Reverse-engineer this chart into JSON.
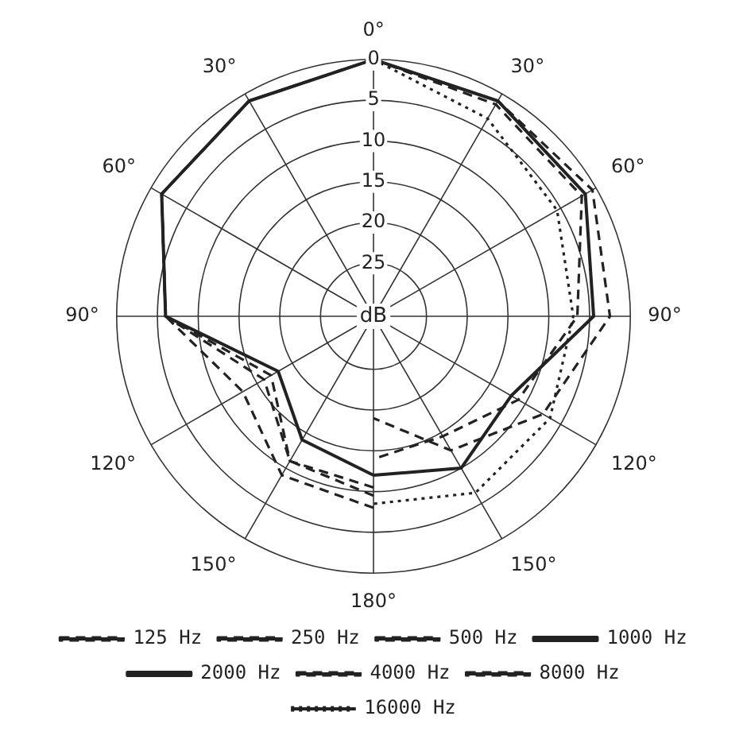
{
  "chart_data": {
    "type": "radar",
    "categories": [
      "0°",
      "30°",
      "60°",
      "90°",
      "120°",
      "150°",
      "180°",
      "150°",
      "120°",
      "90°",
      "60°",
      "30°"
    ],
    "ylim": [
      -31.5,
      0
    ],
    "yticks": [
      {
        "value": -25,
        "label": "25"
      },
      {
        "value": -20,
        "label": "20"
      },
      {
        "value": -15,
        "label": "15"
      },
      {
        "value": -10,
        "label": "10"
      },
      {
        "value": -5,
        "label": "5"
      },
      {
        "value": 0,
        "label": "0"
      }
    ],
    "annotations": [
      "dB"
    ],
    "legend": "bottom",
    "marker": "none",
    "grid": true,
    "series": [
      {
        "name": "125 Hz",
        "color": "#222222",
        "line_style": "dashed",
        "values": [
          0,
          null,
          null,
          null,
          null,
          null,
          -8,
          -9,
          -13,
          -6,
          -1.5,
          -1
        ]
      },
      {
        "name": "250 Hz",
        "color": "#222222",
        "line_style": "dashed",
        "values": [
          0,
          null,
          null,
          null,
          null,
          null,
          -9.5,
          -11,
          -16,
          -6,
          -1.5,
          -1
        ]
      },
      {
        "name": "500 Hz",
        "color": "#222222",
        "line_style": "dashed",
        "values": [
          0,
          null,
          null,
          null,
          null,
          null,
          -10.5,
          -11,
          -17,
          -6,
          -1.5,
          -1
        ]
      },
      {
        "name": "1000 Hz",
        "color": "#222222",
        "line_style": "solid",
        "values": [
          0,
          null,
          null,
          null,
          null,
          null,
          -12,
          -14,
          -18,
          -6,
          -1.5,
          -1
        ]
      },
      {
        "name": "2000 Hz",
        "color": "#222222",
        "line_style": "solid",
        "values": [
          0,
          -1,
          -1.5,
          -4.5,
          -12,
          -10,
          -12,
          null,
          null,
          null,
          null,
          null
        ]
      },
      {
        "name": "4000 Hz",
        "color": "#222222",
        "line_style": "dashed",
        "values": [
          0,
          -1.5,
          -2,
          -6.5,
          -11,
          -14.5,
          -14,
          null,
          null,
          null,
          null,
          null
        ]
      },
      {
        "name": "8000 Hz",
        "color": "#222222",
        "line_style": "dashed",
        "values": [
          0,
          -1,
          -0.5,
          -2.5,
          -7.5,
          -12.5,
          -19,
          null,
          null,
          null,
          null,
          null
        ]
      },
      {
        "name": "16000 Hz",
        "color": "#222222",
        "line_style": "dotted",
        "values": [
          0,
          -3.5,
          -5.5,
          -7,
          -6.5,
          -6.5,
          -8.5,
          null,
          null,
          null,
          null,
          null
        ]
      }
    ]
  }
}
